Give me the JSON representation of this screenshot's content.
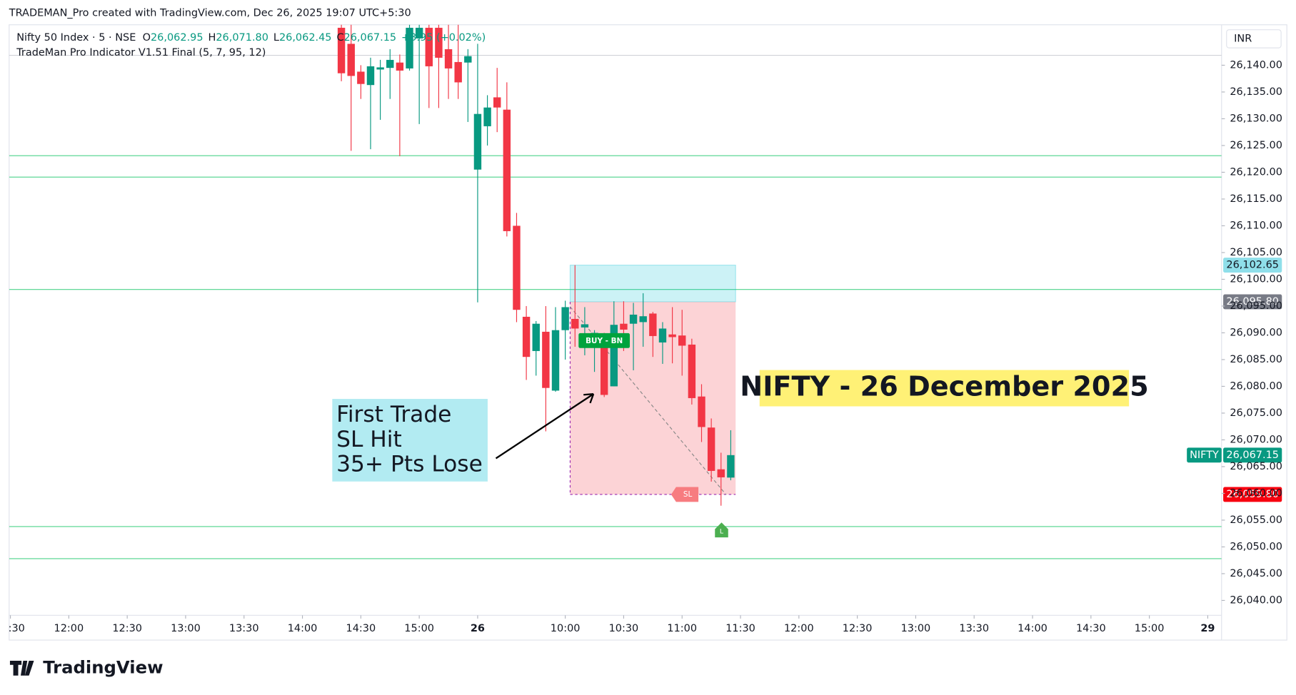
{
  "header": "TRADEMAN_Pro created with TradingView.com, Dec 26, 2025 19:07 UTC+5:30",
  "footer": "TradingView",
  "chart_data": {
    "type": "candlestick",
    "legend": {
      "symbol": "Nifty 50 Index · 5 · NSE",
      "items": [
        {
          "key": "O",
          "value": "26,062.95"
        },
        {
          "key": "H",
          "value": "26,071.80"
        },
        {
          "key": "L",
          "value": "26,062.45"
        },
        {
          "key": "C",
          "value": "26,067.15"
        }
      ],
      "change": "+3.95 (+0.02%)"
    },
    "indicator": "TradeMan Pro Indicator V1.51 Final (5, 7, 95, 12)",
    "currency": "INR",
    "up_color": "#089981",
    "down_color": "#f23645",
    "x": [
      -14,
      -13,
      -12,
      -11,
      -10,
      -9,
      -8,
      -7,
      -6,
      -5,
      -4,
      -3,
      -2,
      -1,
      0,
      1,
      2,
      3,
      4,
      5,
      6,
      7,
      8,
      9,
      10,
      11,
      12,
      13,
      14,
      15,
      16,
      17,
      18,
      19,
      20,
      21,
      22,
      23,
      24,
      25,
      26
    ],
    "open": [
      26147,
      26144,
      26138.8,
      26136.3,
      26139.2,
      26139.5,
      26140.5,
      26139.4,
      26145,
      26147,
      26147,
      26143,
      26140.6,
      26140.5,
      26120.5,
      26128.6,
      26134,
      26131.7,
      26110,
      26093,
      26086.6,
      26090.2,
      26079.2,
      26090.5,
      26092.6,
      26091,
      26088,
      26087.4,
      26080,
      26091.7,
      26091.7,
      26092,
      26093.6,
      26088.2,
      26089.7,
      26089.5,
      26087.8,
      26078.1,
      26072.3,
      26064.5,
      26062.95
    ],
    "high": [
      26150,
      26148,
      26140,
      26141.4,
      26141,
      26143,
      26142,
      26150,
      26150,
      26150,
      26150,
      26148,
      26150,
      26143,
      26144,
      26134.4,
      26139.5,
      26136.8,
      26112.4,
      26095,
      26092.2,
      26095,
      26094.8,
      26096,
      26102.65,
      26094.8,
      26090.5,
      26090,
      26095.9,
      26095.9,
      26095.6,
      26097.4,
      26093.9,
      26092,
      26094.8,
      26094.3,
      26088.9,
      26080.4,
      26074,
      26067.6,
      26071.8
    ],
    "low": [
      26137,
      26124,
      26133.7,
      26124.3,
      26129.8,
      26133.7,
      26123,
      26139,
      26129,
      26132,
      26132,
      26133.7,
      26133.7,
      26129.4,
      26095.7,
      26125,
      26127.5,
      26108,
      26092,
      26081.2,
      26082,
      26071.6,
      26079,
      26085,
      26087.4,
      26085.8,
      26082.7,
      26078,
      26080,
      26086.6,
      26083,
      26087.4,
      26085.5,
      26084.2,
      26084.3,
      26082,
      26076.6,
      26069.6,
      26062.2,
      26057.7,
      26062.45
    ],
    "close": [
      26138.5,
      26138,
      26136.5,
      26139.8,
      26139.6,
      26141,
      26139,
      26147,
      26147,
      26139.8,
      26141.4,
      26139.4,
      26136.8,
      26141.7,
      26130.9,
      26132.1,
      26132.1,
      26109,
      26094.3,
      26085.5,
      26091.7,
      26079.7,
      26090.5,
      26094.8,
      26090.8,
      26091.6,
      26090,
      26078.4,
      26091.5,
      26090.6,
      26093.4,
      26093.1,
      26089.4,
      26090.8,
      26089.2,
      26087.6,
      26077.8,
      26072.4,
      26064.2,
      26063,
      26067.15
    ],
    "xlim": [
      -48.13,
      76.42
    ],
    "xticks": [
      {
        "value": -48,
        "label": ":30"
      },
      {
        "value": -42,
        "label": "12:00"
      },
      {
        "value": -36,
        "label": "12:30"
      },
      {
        "value": -30,
        "label": "13:00"
      },
      {
        "value": -24,
        "label": "13:30"
      },
      {
        "value": -18,
        "label": "14:00"
      },
      {
        "value": -12,
        "label": "14:30"
      },
      {
        "value": -6,
        "label": "15:00"
      },
      {
        "value": 0,
        "label": "26"
      },
      {
        "value": 9,
        "label": "10:00"
      },
      {
        "value": 15,
        "label": "10:30"
      },
      {
        "value": 21,
        "label": "11:00"
      },
      {
        "value": 27,
        "label": "11:30"
      },
      {
        "value": 33,
        "label": "12:00"
      },
      {
        "value": 39,
        "label": "12:30"
      },
      {
        "value": 45,
        "label": "13:00"
      },
      {
        "value": 51,
        "label": "13:30"
      },
      {
        "value": 57,
        "label": "14:00"
      },
      {
        "value": 63,
        "label": "14:30"
      },
      {
        "value": 69,
        "label": "15:00"
      },
      {
        "value": 75,
        "label": "29"
      }
    ],
    "ylim": [
      26037.22,
      26147.56
    ],
    "yticks": [
      {
        "value": 26040,
        "label": "26,040.00"
      },
      {
        "value": 26045,
        "label": "26,045.00"
      },
      {
        "value": 26050,
        "label": "26,050.00"
      },
      {
        "value": 26055,
        "label": "26,055.00"
      },
      {
        "value": 26060,
        "label": "26,060.00"
      },
      {
        "value": 26065,
        "label": "26,065.00"
      },
      {
        "value": 26070,
        "label": "26,070.00"
      },
      {
        "value": 26075,
        "label": "26,075.00"
      },
      {
        "value": 26080,
        "label": "26,080.00"
      },
      {
        "value": 26085,
        "label": "26,085.00"
      },
      {
        "value": 26090,
        "label": "26,090.00"
      },
      {
        "value": 26095,
        "label": "26,095.00"
      },
      {
        "value": 26100,
        "label": "26,100.00"
      },
      {
        "value": 26105,
        "label": "26,105.00"
      },
      {
        "value": 26110,
        "label": "26,110.00"
      },
      {
        "value": 26115,
        "label": "26,115.00"
      },
      {
        "value": 26120,
        "label": "26,120.00"
      },
      {
        "value": 26125,
        "label": "26,125.00"
      },
      {
        "value": 26130,
        "label": "26,130.00"
      },
      {
        "value": 26135,
        "label": "26,135.00"
      },
      {
        "value": 26140,
        "label": "26,140.00"
      }
    ],
    "levels": [
      26123.1,
      26119.1,
      26098.1,
      26053.8,
      26047.8
    ],
    "level_color": "#4cd38a",
    "position": {
      "target": {
        "value": 26102.65,
        "label": "26,102.65"
      },
      "entry": {
        "value": 26095.8,
        "label": "26,095.80"
      },
      "stop": {
        "value": 26059.8,
        "label": "26,059.80"
      }
    },
    "last": {
      "value": 26067.15,
      "label": "26,067.15"
    },
    "symbol_tag": "NIFTY",
    "signals": {
      "buy": "BUY - BN",
      "sl": "SL",
      "l": "L"
    },
    "callout": [
      "First Trade",
      "SL Hit",
      "35+ Pts Lose"
    ],
    "title": "NIFTY - 26 December 2025"
  }
}
